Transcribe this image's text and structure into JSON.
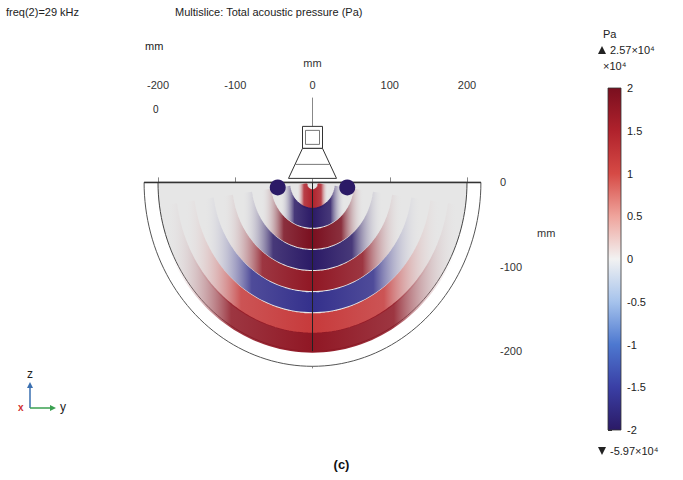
{
  "chart_data": {
    "type": "pressure_field",
    "title": "Multislice: Total acoustic pressure (Pa)",
    "annotations": [
      "freq(2)=29 kHz",
      "(c)"
    ],
    "x_label": "mm",
    "xlim": [
      -200,
      200
    ],
    "xticks": [
      -200,
      -100,
      0,
      100,
      200
    ],
    "y_label": "mm",
    "ylim": [
      -220,
      100
    ],
    "yticks": [
      0,
      -100,
      -200
    ],
    "depth_axis": {
      "label": "mm",
      "ticks": [
        0
      ]
    },
    "triad": [
      "z",
      "y",
      "x"
    ],
    "grid": false,
    "domain_radius": 200,
    "wavefronts": {
      "z": [
        -20,
        -42,
        -67,
        -92,
        -117,
        -142,
        -167,
        -190
      ],
      "values": [
        1.5,
        -2,
        2,
        -2,
        1.8,
        -1.7,
        1.2,
        1.8
      ]
    },
    "spots": {
      "x": [
        -45,
        45
      ],
      "z": [
        -6,
        -6
      ],
      "values": [
        -2,
        -2
      ]
    },
    "colorbar": {
      "unit": "Pa",
      "scale": 10000,
      "scale_label": "×10⁴",
      "lim": [
        -2,
        2
      ],
      "ticks": [
        -2,
        -1.5,
        -1,
        -0.5,
        0,
        0.5,
        1,
        1.5,
        2
      ],
      "max": {
        "value": 25700,
        "label": "2.57×10⁴"
      },
      "min": {
        "value": -59700,
        "label": "-5.97×10⁴"
      }
    }
  }
}
